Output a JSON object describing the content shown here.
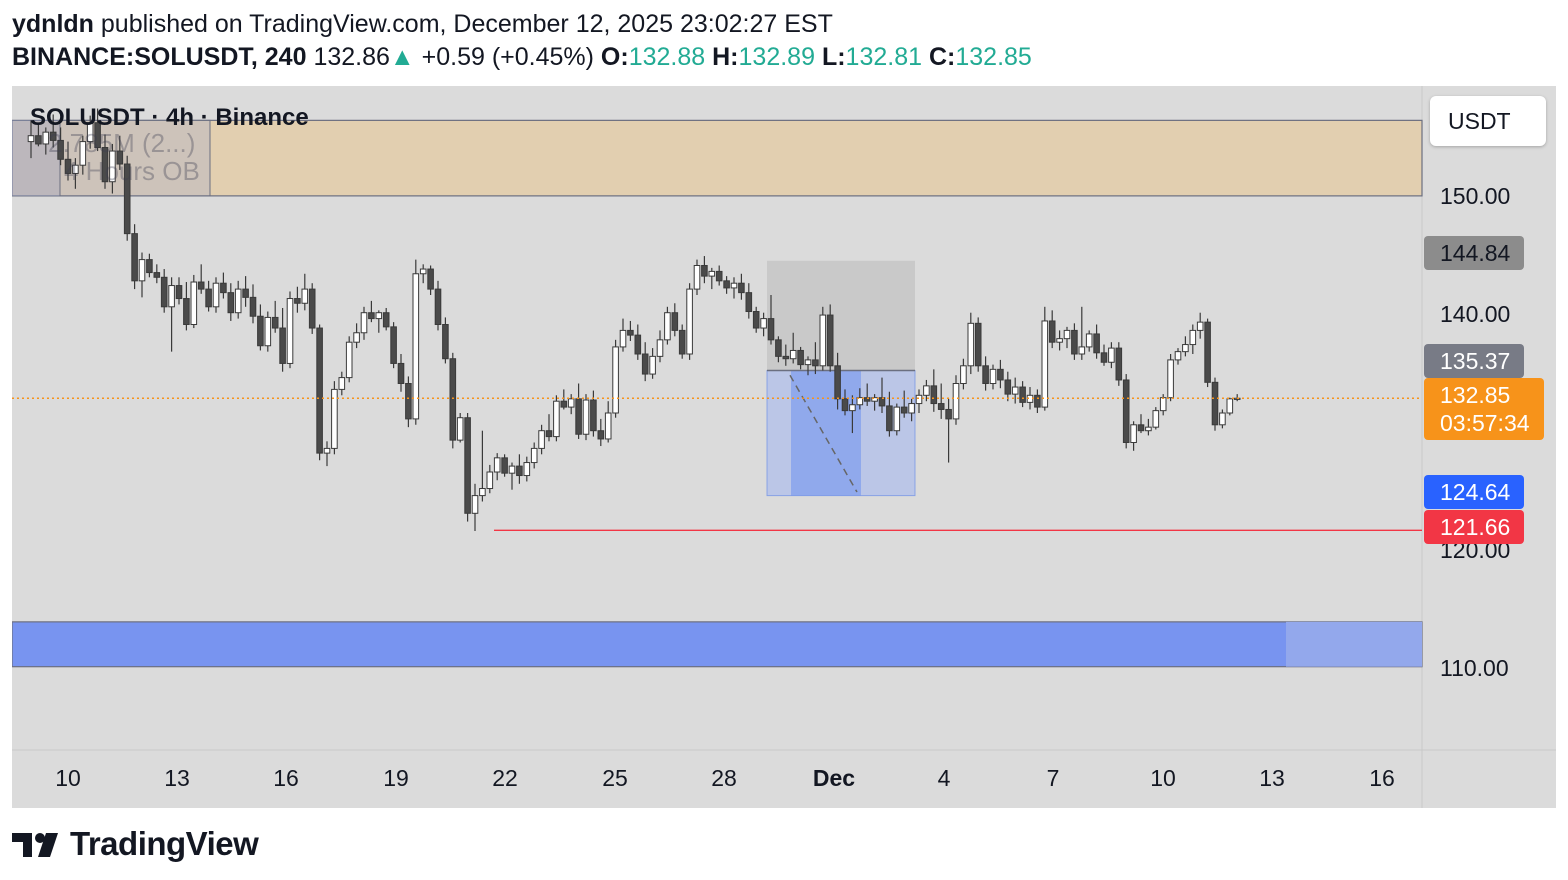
{
  "header": {
    "author": "ydnldn",
    "published_text": "published on TradingView.com, December 12, 2025 23:02:27 EST",
    "symbol": "BINANCE:SOLUSDT, 240",
    "last": "132.86",
    "change": "+0.59 (+0.45%)",
    "o_label": "O:",
    "o_value": "132.88",
    "h_label": "H:",
    "h_value": "132.89",
    "l_label": "L:",
    "l_value": "132.81",
    "c_label": "C:",
    "c_value": "132.85"
  },
  "legend": {
    "title": "SOLUSDT · 4h · Binance",
    "volume": "2.785M (2...)",
    "ob_label": "4 Hours OB"
  },
  "price_axis": {
    "unit": "USDT",
    "ticks": [
      "150.00",
      "140.00",
      "120.00",
      "110.00"
    ]
  },
  "price_tags": {
    "high_tag": "144.84",
    "prev_tag": "135.37",
    "last_price": "132.85",
    "countdown": "03:57:34",
    "blue_tag": "124.64",
    "red_tag": "121.66"
  },
  "colors": {
    "bull": "#ffffff",
    "bear": "#4a4a4a",
    "orange": "#f7931a",
    "blue": "#2962ff",
    "red": "#f23645",
    "zone_tan": "#e2cfb0",
    "zone_blue": "#7894f0"
  },
  "date_axis": [
    "10",
    "13",
    "16",
    "19",
    "22",
    "25",
    "28",
    "Dec",
    "4",
    "7",
    "10",
    "13",
    "16"
  ],
  "logo": {
    "text": "TradingView",
    "icon": "tradingview-logo-icon"
  },
  "chart_data": {
    "type": "candlestick",
    "ylim": [
      102,
      156
    ],
    "zones": [
      {
        "label": "4 Hours OB",
        "low": 150,
        "high": 156.4
      },
      {
        "low": 110.1,
        "high": 113.9
      }
    ],
    "levels": [
      121.66,
      132.85
    ],
    "y_ticks": [
      150,
      140,
      120,
      110
    ],
    "candles": [
      [
        0,
        154.6,
        156.4,
        153.2,
        155.1
      ],
      [
        1,
        155.1,
        156.1,
        154.2,
        154.4
      ],
      [
        2,
        154.4,
        155.8,
        153.5,
        155.4
      ],
      [
        3,
        155.4,
        156.9,
        154.1,
        154.7
      ],
      [
        4,
        154.7,
        155.8,
        152.6,
        153.1
      ],
      [
        5,
        153.1,
        154.6,
        151.3,
        151.9
      ],
      [
        6,
        151.9,
        153.2,
        150.6,
        152.6
      ],
      [
        7,
        152.6,
        155.1,
        151.8,
        154.6
      ],
      [
        8,
        154.6,
        156.8,
        154.0,
        156.2
      ],
      [
        9,
        156.2,
        157.4,
        153.8,
        154.1
      ],
      [
        10,
        154.1,
        155.2,
        150.6,
        151.2
      ],
      [
        11,
        151.2,
        154.4,
        150.2,
        153.8
      ],
      [
        12,
        153.8,
        155.1,
        152.2,
        152.7
      ],
      [
        13,
        152.7,
        153.4,
        146.2,
        146.8
      ],
      [
        14,
        146.8,
        147.6,
        142.1,
        142.8
      ],
      [
        15,
        142.8,
        145.2,
        141.4,
        144.6
      ],
      [
        16,
        144.6,
        145.1,
        143.1,
        143.5
      ],
      [
        17,
        143.5,
        144.2,
        142.6,
        143.1
      ],
      [
        18,
        143.1,
        143.8,
        140.1,
        140.6
      ],
      [
        19,
        140.6,
        143.1,
        136.8,
        142.4
      ],
      [
        20,
        142.4,
        143.1,
        140.8,
        141.3
      ],
      [
        21,
        141.3,
        142.7,
        138.6,
        139.1
      ],
      [
        22,
        139.1,
        143.3,
        138.8,
        142.7
      ],
      [
        23,
        142.7,
        144.2,
        141.7,
        142.1
      ],
      [
        24,
        142.1,
        142.8,
        140.2,
        140.6
      ],
      [
        25,
        140.6,
        143.1,
        140.1,
        142.6
      ],
      [
        26,
        142.6,
        143.5,
        141.3,
        141.8
      ],
      [
        27,
        141.8,
        142.6,
        139.4,
        140.1
      ],
      [
        28,
        140.1,
        142.8,
        139.6,
        142.1
      ],
      [
        29,
        142.1,
        143.2,
        140.6,
        141.4
      ],
      [
        30,
        141.4,
        142.5,
        139.2,
        139.8
      ],
      [
        31,
        139.8,
        140.8,
        136.9,
        137.3
      ],
      [
        32,
        137.3,
        140.2,
        136.8,
        139.7
      ],
      [
        33,
        139.7,
        141.1,
        138.4,
        138.8
      ],
      [
        34,
        138.8,
        140.5,
        135.1,
        135.8
      ],
      [
        35,
        135.8,
        141.9,
        135.4,
        141.3
      ],
      [
        36,
        141.3,
        142.3,
        140.1,
        140.9
      ],
      [
        37,
        140.9,
        143.4,
        140.3,
        142.1
      ],
      [
        38,
        142.1,
        142.6,
        138.3,
        138.8
      ],
      [
        39,
        138.8,
        139.1,
        127.6,
        128.2
      ],
      [
        40,
        128.2,
        129.2,
        127.1,
        128.6
      ],
      [
        41,
        128.6,
        134.3,
        128.1,
        133.6
      ],
      [
        42,
        133.6,
        135.1,
        133.1,
        134.6
      ],
      [
        43,
        134.6,
        138.1,
        134.2,
        137.6
      ],
      [
        44,
        137.6,
        139.2,
        137.1,
        138.4
      ],
      [
        45,
        138.4,
        140.6,
        137.8,
        140.1
      ],
      [
        46,
        140.1,
        141.1,
        139.3,
        139.6
      ],
      [
        47,
        139.6,
        140.3,
        138.4,
        140.1
      ],
      [
        48,
        140.1,
        140.5,
        138.6,
        138.9
      ],
      [
        49,
        138.9,
        139.3,
        135.4,
        135.8
      ],
      [
        50,
        135.8,
        136.6,
        133.4,
        134.1
      ],
      [
        51,
        134.1,
        134.7,
        130.4,
        131.1
      ],
      [
        52,
        131.1,
        144.6,
        130.6,
        143.4
      ],
      [
        53,
        143.4,
        144.2,
        142.6,
        143.8
      ],
      [
        54,
        143.8,
        144.1,
        141.6,
        142.1
      ],
      [
        55,
        142.1,
        142.8,
        138.6,
        139.1
      ],
      [
        56,
        139.1,
        139.7,
        135.8,
        136.2
      ],
      [
        57,
        136.2,
        136.7,
        128.6,
        129.3
      ],
      [
        58,
        129.3,
        131.6,
        129.1,
        131.2
      ],
      [
        59,
        131.2,
        131.6,
        122.4,
        123.1
      ],
      [
        60,
        123.1,
        125.6,
        121.6,
        124.6
      ],
      [
        61,
        124.6,
        130.1,
        124.1,
        125.2
      ],
      [
        62,
        125.2,
        127.2,
        124.8,
        126.6
      ],
      [
        63,
        126.6,
        128.2,
        125.9,
        127.8
      ],
      [
        64,
        127.8,
        128.1,
        126.2,
        126.5
      ],
      [
        65,
        126.5,
        127.4,
        125.1,
        127.1
      ],
      [
        66,
        127.1,
        128.1,
        125.6,
        126.3
      ],
      [
        67,
        126.3,
        127.9,
        125.8,
        127.4
      ],
      [
        68,
        127.4,
        129.1,
        126.9,
        128.6
      ],
      [
        69,
        128.6,
        130.6,
        128.1,
        130.1
      ],
      [
        70,
        130.1,
        131.5,
        129.2,
        129.6
      ],
      [
        71,
        129.6,
        133.1,
        129.2,
        132.6
      ],
      [
        72,
        132.6,
        133.6,
        131.9,
        132.1
      ],
      [
        73,
        132.1,
        133.2,
        131.5,
        132.8
      ],
      [
        74,
        132.8,
        134.1,
        129.4,
        129.8
      ],
      [
        75,
        129.8,
        133.2,
        129.3,
        132.7
      ],
      [
        76,
        132.7,
        133.5,
        129.6,
        130.1
      ],
      [
        77,
        130.1,
        131.1,
        128.8,
        129.4
      ],
      [
        78,
        129.4,
        132.6,
        129.1,
        131.6
      ],
      [
        79,
        131.6,
        137.8,
        131.2,
        137.2
      ],
      [
        80,
        137.2,
        139.6,
        136.8,
        138.6
      ],
      [
        81,
        138.6,
        139.4,
        137.7,
        138.2
      ],
      [
        82,
        138.2,
        139.1,
        136.1,
        136.6
      ],
      [
        83,
        136.6,
        137.6,
        134.3,
        134.9
      ],
      [
        84,
        134.9,
        137.1,
        134.5,
        136.4
      ],
      [
        85,
        136.4,
        138.6,
        135.9,
        137.8
      ],
      [
        86,
        137.8,
        140.6,
        137.4,
        140.1
      ],
      [
        87,
        140.1,
        140.9,
        138.1,
        138.6
      ],
      [
        88,
        138.6,
        139.1,
        136.2,
        136.6
      ],
      [
        89,
        136.6,
        142.6,
        136.1,
        142.1
      ],
      [
        90,
        142.1,
        144.6,
        141.6,
        144.1
      ],
      [
        91,
        144.1,
        144.9,
        142.6,
        143.2
      ],
      [
        92,
        143.2,
        143.9,
        142.1,
        143.6
      ],
      [
        93,
        143.6,
        144.1,
        142.4,
        142.8
      ],
      [
        94,
        142.8,
        143.2,
        141.7,
        142.2
      ],
      [
        95,
        142.2,
        143.1,
        141.3,
        142.6
      ],
      [
        96,
        142.6,
        143.4,
        141.2,
        141.8
      ],
      [
        97,
        141.8,
        142.6,
        139.6,
        140.2
      ],
      [
        98,
        140.2,
        140.6,
        138.4,
        138.8
      ],
      [
        99,
        138.8,
        140.1,
        138.1,
        139.6
      ],
      [
        100,
        139.6,
        141.6,
        137.4,
        137.8
      ],
      [
        101,
        137.8,
        138.1,
        135.9,
        136.4
      ],
      [
        102,
        136.4,
        137.4,
        135.6,
        136.2
      ],
      [
        103,
        136.2,
        138.4,
        135.8,
        136.9
      ],
      [
        104,
        136.9,
        137.2,
        135.3,
        135.7
      ],
      [
        105,
        135.7,
        136.4,
        134.8,
        136.1
      ],
      [
        106,
        136.1,
        137.6,
        134.9,
        135.6
      ],
      [
        107,
        135.6,
        140.6,
        135.2,
        139.9
      ],
      [
        108,
        139.9,
        140.8,
        135.1,
        135.6
      ],
      [
        109,
        135.6,
        136.7,
        131.9,
        132.8
      ],
      [
        110,
        132.8,
        133.6,
        131.4,
        131.8
      ],
      [
        111,
        131.8,
        133.1,
        129.9,
        132.3
      ],
      [
        112,
        132.3,
        133.7,
        131.9,
        132.9
      ],
      [
        113,
        132.9,
        134.1,
        132.2,
        132.6
      ],
      [
        114,
        132.6,
        133.2,
        131.8,
        132.9
      ],
      [
        115,
        132.9,
        134.6,
        131.6,
        132.2
      ],
      [
        116,
        132.2,
        133.4,
        129.6,
        130.1
      ],
      [
        117,
        130.1,
        132.4,
        129.7,
        132.1
      ],
      [
        118,
        132.1,
        133.5,
        131.2,
        131.6
      ],
      [
        119,
        131.6,
        132.8,
        130.9,
        132.4
      ],
      [
        120,
        132.4,
        133.6,
        131.6,
        133.1
      ],
      [
        121,
        133.1,
        134.4,
        132.6,
        133.9
      ],
      [
        122,
        133.9,
        135.3,
        131.7,
        132.4
      ],
      [
        123,
        132.4,
        134.1,
        131.1,
        131.9
      ],
      [
        124,
        131.9,
        132.8,
        127.4,
        131.1
      ],
      [
        125,
        131.1,
        134.8,
        130.6,
        134.1
      ],
      [
        126,
        134.1,
        136.2,
        133.6,
        135.6
      ],
      [
        127,
        135.6,
        140.1,
        134.9,
        139.2
      ],
      [
        128,
        139.2,
        139.7,
        135.1,
        135.6
      ],
      [
        129,
        135.6,
        136.4,
        133.5,
        134.1
      ],
      [
        130,
        134.1,
        135.7,
        133.6,
        135.3
      ],
      [
        131,
        135.3,
        136.1,
        133.7,
        134.4
      ],
      [
        132,
        134.4,
        135.1,
        132.6,
        133.2
      ],
      [
        133,
        133.2,
        134.6,
        132.4,
        133.8
      ],
      [
        134,
        133.8,
        134.3,
        132.1,
        132.5
      ],
      [
        135,
        132.5,
        133.8,
        131.9,
        133.1
      ],
      [
        136,
        133.1,
        133.6,
        131.6,
        132.1
      ],
      [
        137,
        132.1,
        140.6,
        131.8,
        139.4
      ],
      [
        138,
        139.4,
        140.3,
        137.1,
        137.6
      ],
      [
        139,
        137.6,
        138.6,
        136.9,
        137.9
      ],
      [
        140,
        137.9,
        138.9,
        137.1,
        138.6
      ],
      [
        141,
        138.6,
        139.2,
        136.1,
        136.6
      ],
      [
        142,
        136.6,
        140.6,
        136.1,
        137.2
      ],
      [
        143,
        137.2,
        138.6,
        136.8,
        138.3
      ],
      [
        144,
        138.3,
        139.1,
        136.2,
        136.7
      ],
      [
        145,
        136.7,
        137.4,
        135.6,
        135.9
      ],
      [
        146,
        135.9,
        137.6,
        135.4,
        137.1
      ],
      [
        147,
        137.1,
        137.6,
        133.9,
        134.4
      ],
      [
        148,
        134.4,
        134.9,
        128.6,
        129.1
      ],
      [
        149,
        129.1,
        130.9,
        128.4,
        130.6
      ],
      [
        150,
        130.6,
        131.5,
        129.9,
        130.1
      ],
      [
        151,
        130.1,
        131.1,
        129.7,
        130.4
      ],
      [
        152,
        130.4,
        132.1,
        130.2,
        131.8
      ],
      [
        153,
        131.8,
        133.2,
        131.4,
        132.9
      ],
      [
        154,
        132.9,
        136.6,
        132.6,
        136.1
      ],
      [
        155,
        136.1,
        137.1,
        135.7,
        136.8
      ],
      [
        156,
        136.8,
        138.1,
        136.4,
        137.4
      ],
      [
        157,
        137.4,
        139.1,
        136.6,
        138.6
      ],
      [
        158,
        138.6,
        140.1,
        137.9,
        139.3
      ],
      [
        159,
        139.3,
        139.6,
        133.8,
        134.2
      ],
      [
        160,
        134.2,
        134.6,
        130.1,
        130.6
      ],
      [
        161,
        130.6,
        131.9,
        130.3,
        131.6
      ],
      [
        162,
        131.6,
        132.9,
        131.4,
        132.8
      ],
      [
        163,
        132.8,
        133.2,
        132.6,
        132.85
      ]
    ]
  }
}
